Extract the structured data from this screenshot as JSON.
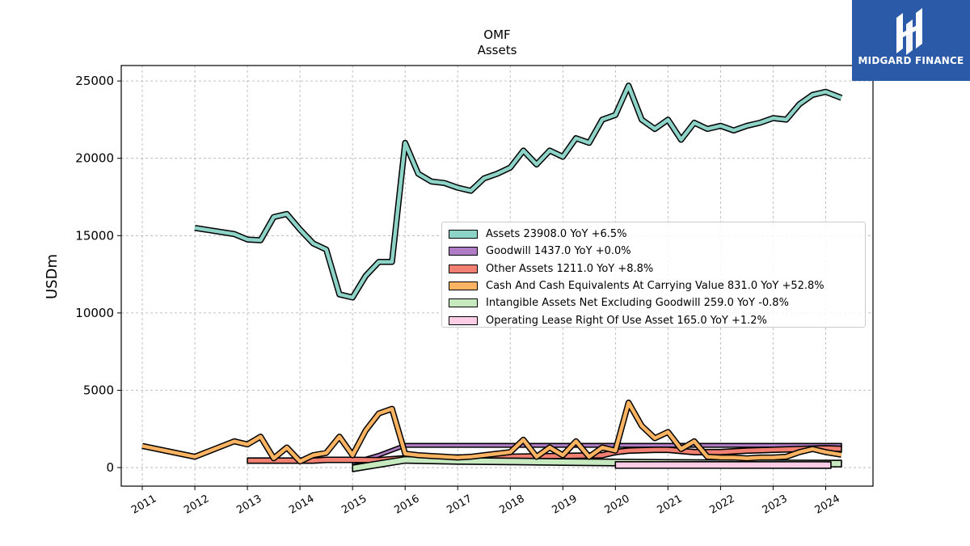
{
  "brand": {
    "logo_text": "MIDGARD FINANCE",
    "logo_bg": "#2b5aa8"
  },
  "chart_data": {
    "type": "line",
    "title": "OMF",
    "subtitle": "Assets",
    "ylabel": "USDm",
    "xlabel": "",
    "xlim": [
      2010.6,
      2024.9
    ],
    "ylim": [
      -1200,
      26000
    ],
    "yticks": [
      0,
      5000,
      10000,
      15000,
      20000,
      25000
    ],
    "xticks": [
      "2011",
      "2012",
      "2013",
      "2014",
      "2015",
      "2016",
      "2017",
      "2018",
      "2019",
      "2020",
      "2021",
      "2022",
      "2023",
      "2024"
    ],
    "grid": true,
    "legend_position": "center-right",
    "series": [
      {
        "name": "Assets",
        "legend": "Assets  23908.0 YoY +6.5%",
        "color": "#8dd3c7",
        "points": [
          [
            2012.0,
            15500
          ],
          [
            2012.75,
            15100
          ],
          [
            2013.0,
            14750
          ],
          [
            2013.25,
            14700
          ],
          [
            2013.5,
            16200
          ],
          [
            2013.75,
            16400
          ],
          [
            2014.0,
            15400
          ],
          [
            2014.25,
            14500
          ],
          [
            2014.5,
            14100
          ],
          [
            2014.75,
            11200
          ],
          [
            2015.0,
            11000
          ],
          [
            2015.25,
            12400
          ],
          [
            2015.5,
            13300
          ],
          [
            2015.75,
            13300
          ],
          [
            2016.0,
            21000
          ],
          [
            2016.25,
            19000
          ],
          [
            2016.5,
            18500
          ],
          [
            2016.75,
            18400
          ],
          [
            2017.0,
            18100
          ],
          [
            2017.25,
            17900
          ],
          [
            2017.5,
            18700
          ],
          [
            2017.75,
            19000
          ],
          [
            2018.0,
            19400
          ],
          [
            2018.25,
            20500
          ],
          [
            2018.5,
            19600
          ],
          [
            2018.75,
            20500
          ],
          [
            2019.0,
            20100
          ],
          [
            2019.25,
            21300
          ],
          [
            2019.5,
            21000
          ],
          [
            2019.75,
            22500
          ],
          [
            2020.0,
            22800
          ],
          [
            2020.25,
            24700
          ],
          [
            2020.5,
            22500
          ],
          [
            2020.75,
            21900
          ],
          [
            2021.0,
            22500
          ],
          [
            2021.25,
            21200
          ],
          [
            2021.5,
            22300
          ],
          [
            2021.75,
            21900
          ],
          [
            2022.0,
            22100
          ],
          [
            2022.25,
            21800
          ],
          [
            2022.5,
            22100
          ],
          [
            2022.75,
            22300
          ],
          [
            2023.0,
            22600
          ],
          [
            2023.25,
            22500
          ],
          [
            2023.5,
            23500
          ],
          [
            2023.75,
            24100
          ],
          [
            2024.0,
            24300
          ],
          [
            2024.3,
            23908
          ]
        ]
      },
      {
        "name": "Goodwill",
        "legend": "Goodwill  1437.0 YoY +0.0%",
        "color": "#b07cc6",
        "band_width": 240,
        "points": [
          [
            2015.0,
            300
          ],
          [
            2015.5,
            800
          ],
          [
            2016.0,
            1437
          ],
          [
            2024.3,
            1437
          ]
        ]
      },
      {
        "name": "Other Assets",
        "legend": "Other Assets  1211.0 YoY +8.8%",
        "color": "#f28072",
        "band_width": 340,
        "points": [
          [
            2013.0,
            450
          ],
          [
            2014.0,
            450
          ],
          [
            2014.25,
            450
          ],
          [
            2014.5,
            500
          ],
          [
            2015.0,
            500
          ],
          [
            2015.5,
            480
          ],
          [
            2016.0,
            600
          ],
          [
            2017.0,
            650
          ],
          [
            2018.0,
            700
          ],
          [
            2019.0,
            750
          ],
          [
            2019.75,
            800
          ],
          [
            2020.0,
            1000
          ],
          [
            2020.25,
            1100
          ],
          [
            2020.75,
            1150
          ],
          [
            2021.0,
            1150
          ],
          [
            2021.5,
            1000
          ],
          [
            2022.0,
            1000
          ],
          [
            2022.5,
            1100
          ],
          [
            2023.0,
            1150
          ],
          [
            2023.5,
            1200
          ],
          [
            2024.0,
            1250
          ],
          [
            2024.3,
            1211
          ]
        ]
      },
      {
        "name": "Cash And Cash Equivalents At Carrying Value",
        "legend": "Cash And Cash Equivalents At Carrying Value  831.0 YoY +52.8%",
        "color": "#fdb462",
        "points": [
          [
            2011.0,
            1400
          ],
          [
            2012.0,
            700
          ],
          [
            2012.75,
            1700
          ],
          [
            2013.0,
            1500
          ],
          [
            2013.25,
            2000
          ],
          [
            2013.5,
            600
          ],
          [
            2013.75,
            1300
          ],
          [
            2014.0,
            400
          ],
          [
            2014.25,
            800
          ],
          [
            2014.5,
            950
          ],
          [
            2014.75,
            2000
          ],
          [
            2015.0,
            800
          ],
          [
            2015.25,
            2400
          ],
          [
            2015.5,
            3500
          ],
          [
            2015.75,
            3800
          ],
          [
            2016.0,
            900
          ],
          [
            2016.25,
            800
          ],
          [
            2016.5,
            750
          ],
          [
            2016.75,
            700
          ],
          [
            2017.0,
            650
          ],
          [
            2017.25,
            700
          ],
          [
            2017.5,
            800
          ],
          [
            2017.75,
            900
          ],
          [
            2018.0,
            1000
          ],
          [
            2018.25,
            1800
          ],
          [
            2018.5,
            700
          ],
          [
            2018.75,
            1300
          ],
          [
            2019.0,
            800
          ],
          [
            2019.25,
            1700
          ],
          [
            2019.5,
            700
          ],
          [
            2019.75,
            1300
          ],
          [
            2020.0,
            1100
          ],
          [
            2020.25,
            4200
          ],
          [
            2020.5,
            2700
          ],
          [
            2020.75,
            1900
          ],
          [
            2021.0,
            2300
          ],
          [
            2021.25,
            1200
          ],
          [
            2021.5,
            1700
          ],
          [
            2021.75,
            700
          ],
          [
            2022.0,
            650
          ],
          [
            2022.25,
            650
          ],
          [
            2022.5,
            600
          ],
          [
            2022.75,
            650
          ],
          [
            2023.0,
            650
          ],
          [
            2023.25,
            700
          ],
          [
            2023.5,
            1000
          ],
          [
            2023.75,
            1200
          ],
          [
            2024.0,
            1000
          ],
          [
            2024.3,
            831
          ]
        ]
      },
      {
        "name": "Intangible Assets Net Excluding Goodwill",
        "legend": "Intangible Assets Net Excluding Goodwill  259.0 YoY -0.8%",
        "color": "#c7e9c0",
        "band_width": 420,
        "points": [
          [
            2015.0,
            -50
          ],
          [
            2016.0,
            500
          ],
          [
            2017.0,
            430
          ],
          [
            2018.0,
            400
          ],
          [
            2019.0,
            360
          ],
          [
            2020.0,
            330
          ],
          [
            2021.0,
            300
          ],
          [
            2022.0,
            280
          ],
          [
            2023.0,
            270
          ],
          [
            2024.3,
            259
          ]
        ]
      },
      {
        "name": "Operating Lease Right Of Use Asset",
        "legend": "Operating Lease Right Of Use Asset  165.0 YoY +1.2%",
        "color": "#fccde5",
        "band_width": 420,
        "points": [
          [
            2020.0,
            170
          ],
          [
            2024.1,
            165
          ]
        ]
      }
    ]
  }
}
